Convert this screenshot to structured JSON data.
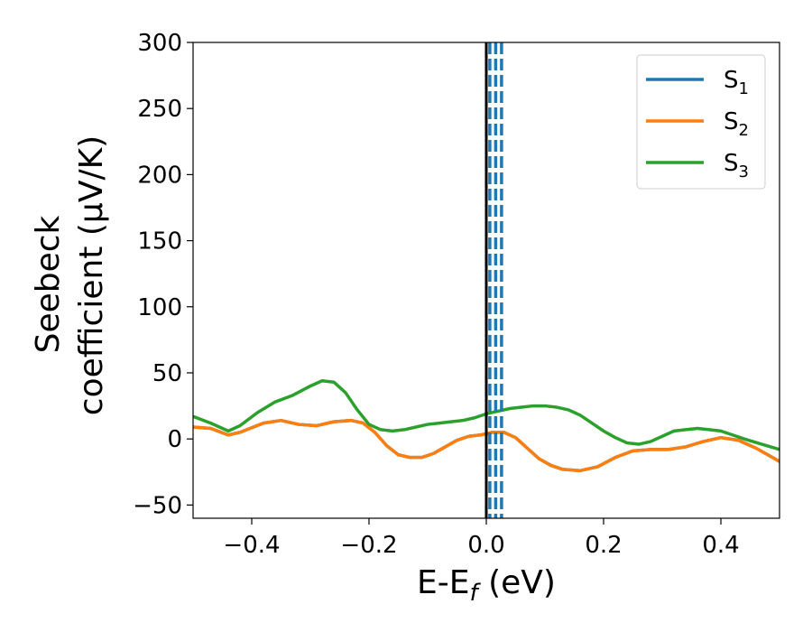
{
  "chart_data": {
    "type": "line",
    "xlabel": {
      "main": "E-E",
      "sub": "f",
      "tail": " (eV)"
    },
    "ylabel": {
      "line1": "Seebeck",
      "line2": "coefficient  (μV/K)"
    },
    "xlim": [
      -0.5,
      0.5
    ],
    "ylim": [
      -60,
      300
    ],
    "xticks": [
      -0.4,
      -0.2,
      0.0,
      0.2,
      0.4
    ],
    "xtick_labels": [
      "−0.4",
      "−0.2",
      "0.0",
      "0.2",
      "0.4"
    ],
    "yticks": [
      -50,
      0,
      50,
      100,
      150,
      200,
      250,
      300
    ],
    "ytick_labels": [
      "−50",
      "0",
      "50",
      "100",
      "150",
      "200",
      "250",
      "300"
    ],
    "grid": false,
    "legend_position": "top-right",
    "vertical_lines": [
      {
        "x": 0.0,
        "style": "solid",
        "color": "#000000"
      },
      {
        "x": 0.006,
        "style": "dashed",
        "color": "#1f77b4"
      },
      {
        "x": 0.016,
        "style": "dashed",
        "color": "#1f77b4"
      },
      {
        "x": 0.026,
        "style": "dashed",
        "color": "#1f77b4"
      }
    ],
    "series": [
      {
        "name": "S",
        "sub": "1",
        "color": "#1f77b4",
        "x": [
          -0.5,
          -0.47,
          -0.44,
          -0.42,
          -0.38,
          -0.35,
          -0.32,
          -0.29,
          -0.26,
          -0.23,
          -0.21,
          -0.19,
          -0.17,
          -0.15,
          -0.13,
          -0.11,
          -0.09,
          -0.07,
          -0.05,
          -0.03,
          -0.01,
          0.0,
          0.01,
          0.03,
          0.05,
          0.07,
          0.09,
          0.11,
          0.13,
          0.16,
          0.19,
          0.22,
          0.25,
          0.28,
          0.31,
          0.34,
          0.37,
          0.4,
          0.43,
          0.46,
          0.5
        ],
        "values": [
          9,
          8,
          3,
          5,
          12,
          14,
          11,
          10,
          13,
          14,
          12,
          5,
          -5,
          -12,
          -14,
          -14,
          -11,
          -6,
          -1,
          2,
          3,
          4,
          5,
          5,
          1,
          -7,
          -15,
          -20,
          -23,
          -24,
          -21,
          -14,
          -9,
          -8,
          -8,
          -6,
          -2,
          1,
          -1,
          -7,
          -17
        ]
      },
      {
        "name": "S",
        "sub": "2",
        "color": "#ff7f0e",
        "x": [
          -0.5,
          -0.47,
          -0.44,
          -0.42,
          -0.38,
          -0.35,
          -0.32,
          -0.29,
          -0.26,
          -0.23,
          -0.21,
          -0.19,
          -0.17,
          -0.15,
          -0.13,
          -0.11,
          -0.09,
          -0.07,
          -0.05,
          -0.03,
          -0.01,
          0.0,
          0.01,
          0.03,
          0.05,
          0.07,
          0.09,
          0.11,
          0.13,
          0.16,
          0.19,
          0.22,
          0.25,
          0.28,
          0.31,
          0.34,
          0.37,
          0.4,
          0.43,
          0.46,
          0.5
        ],
        "values": [
          9,
          8,
          3,
          5,
          12,
          14,
          11,
          10,
          13,
          14,
          12,
          5,
          -5,
          -12,
          -14,
          -14,
          -11,
          -6,
          -1,
          2,
          3,
          4,
          5,
          5,
          1,
          -7,
          -15,
          -20,
          -23,
          -24,
          -21,
          -14,
          -9,
          -8,
          -8,
          -6,
          -2,
          1,
          -1,
          -7,
          -17
        ]
      },
      {
        "name": "S",
        "sub": "3",
        "color": "#2ca02c",
        "x": [
          -0.5,
          -0.47,
          -0.44,
          -0.42,
          -0.39,
          -0.36,
          -0.33,
          -0.3,
          -0.28,
          -0.26,
          -0.24,
          -0.22,
          -0.2,
          -0.18,
          -0.16,
          -0.14,
          -0.12,
          -0.1,
          -0.08,
          -0.06,
          -0.04,
          -0.02,
          0.0,
          0.02,
          0.04,
          0.06,
          0.08,
          0.1,
          0.12,
          0.14,
          0.16,
          0.18,
          0.2,
          0.22,
          0.24,
          0.26,
          0.28,
          0.3,
          0.32,
          0.34,
          0.36,
          0.38,
          0.4,
          0.42,
          0.44,
          0.47,
          0.5
        ],
        "values": [
          17,
          12,
          6,
          10,
          20,
          28,
          33,
          40,
          44,
          43,
          35,
          22,
          11,
          7,
          6,
          7,
          9,
          11,
          12,
          13,
          14,
          16,
          19,
          21,
          23,
          24,
          25,
          25,
          24,
          22,
          18,
          12,
          6,
          1,
          -3,
          -4,
          -2,
          2,
          6,
          7,
          8,
          7,
          6,
          3,
          0,
          -4,
          -8
        ]
      }
    ]
  }
}
